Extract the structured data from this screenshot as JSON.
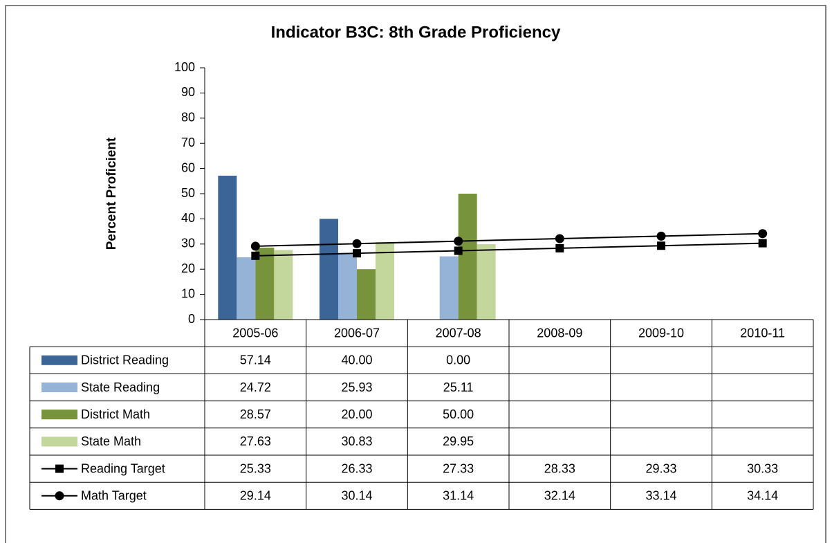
{
  "chart_data": {
    "type": "bar",
    "title": "Indicator B3C: 8th Grade Proficiency",
    "y_label": "Percent Proficient",
    "categories": [
      "2005-06",
      "2006-07",
      "2007-08",
      "2008-09",
      "2009-10",
      "2010-11"
    ],
    "ylim": [
      0,
      100
    ],
    "yticks": [
      0,
      10,
      20,
      30,
      40,
      50,
      60,
      70,
      80,
      90,
      100
    ],
    "series": [
      {
        "name": "District Reading",
        "type": "bar",
        "color": "#3b6497",
        "values": [
          57.14,
          40,
          0,
          null,
          null,
          null
        ],
        "value_labels": [
          "57.14",
          "40.00",
          "0.00",
          null,
          null,
          null
        ]
      },
      {
        "name": "State Reading",
        "type": "bar",
        "color": "#95b3d7",
        "values": [
          24.72,
          25.93,
          25.11,
          null,
          null,
          null
        ],
        "value_labels": [
          "24.72",
          "25.93",
          "25.11",
          null,
          null,
          null
        ]
      },
      {
        "name": "District Math",
        "type": "bar",
        "color": "#77933c",
        "values": [
          28.57,
          20,
          50,
          null,
          null,
          null
        ],
        "value_labels": [
          "28.57",
          "20.00",
          "50.00",
          null,
          null,
          null
        ]
      },
      {
        "name": "State Math",
        "type": "bar",
        "color": "#c3d69b",
        "values": [
          27.63,
          30.83,
          29.95,
          null,
          null,
          null
        ],
        "value_labels": [
          "27.63",
          "30.83",
          "29.95",
          null,
          null,
          null
        ]
      },
      {
        "name": "Reading Target",
        "type": "line",
        "marker": "square",
        "color": "#000000",
        "values": [
          25.33,
          26.33,
          27.33,
          28.33,
          29.33,
          30.33
        ]
      },
      {
        "name": "Math Target",
        "type": "line",
        "marker": "circle",
        "color": "#000000",
        "values": [
          29.14,
          30.14,
          31.14,
          32.14,
          33.14,
          34.14
        ]
      }
    ]
  }
}
